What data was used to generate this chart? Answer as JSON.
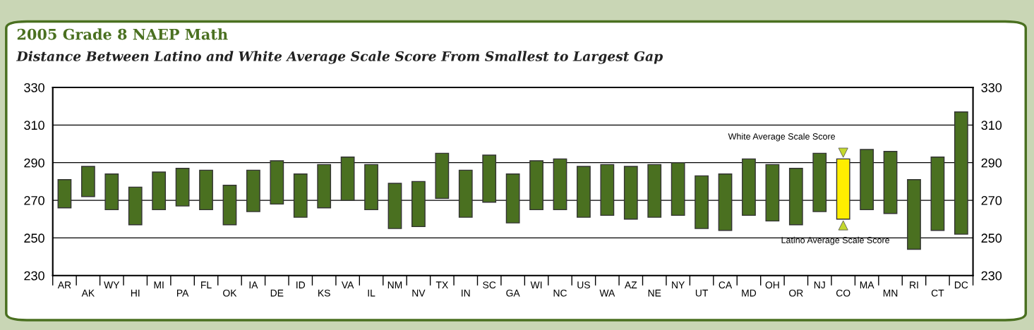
{
  "chart_data": {
    "type": "bar",
    "title": "2005 Grade 8 NAEP Math",
    "subtitle": "Distance Between Latino and White Average Scale Score From Smallest to Largest Gap",
    "categories": [
      "AR",
      "AK",
      "WY",
      "HI",
      "MI",
      "PA",
      "FL",
      "OK",
      "IA",
      "DE",
      "ID",
      "KS",
      "VA",
      "IL",
      "NM",
      "NV",
      "TX",
      "IN",
      "SC",
      "GA",
      "WI",
      "NC",
      "US",
      "WA",
      "AZ",
      "NE",
      "NY",
      "UT",
      "CA",
      "MD",
      "OH",
      "OR",
      "NJ",
      "CO",
      "MA",
      "MN",
      "RI",
      "CT",
      "DC"
    ],
    "base": [
      266,
      272,
      265,
      257,
      265,
      267,
      265,
      257,
      264,
      268,
      261,
      266,
      270,
      265,
      255,
      256,
      271,
      261,
      269,
      258,
      265,
      265,
      261,
      262,
      260,
      261,
      262,
      255,
      254,
      262,
      259,
      257,
      264,
      260,
      265,
      263,
      244,
      254,
      252
    ],
    "values": [
      15,
      16,
      19,
      20,
      20,
      20,
      21,
      21,
      22,
      23,
      23,
      23,
      23,
      24,
      24,
      24,
      24,
      25,
      25,
      26,
      26,
      27,
      27,
      27,
      28,
      28,
      28,
      28,
      30,
      30,
      30,
      30,
      31,
      32,
      32,
      33,
      37,
      39,
      65
    ],
    "colors": [
      "#4a7020",
      "#4a7020",
      "#4a7020",
      "#4a7020",
      "#4a7020",
      "#4a7020",
      "#4a7020",
      "#4a7020",
      "#4a7020",
      "#4a7020",
      "#4a7020",
      "#4a7020",
      "#4a7020",
      "#4a7020",
      "#4a7020",
      "#4a7020",
      "#4a7020",
      "#4a7020",
      "#4a7020",
      "#4a7020",
      "#4a7020",
      "#4a7020",
      "#4a7020",
      "#4a7020",
      "#4a7020",
      "#4a7020",
      "#4a7020",
      "#4a7020",
      "#4a7020",
      "#4a7020",
      "#4a7020",
      "#4a7020",
      "#4a7020",
      "#ffee00",
      "#4a7020",
      "#4a7020",
      "#4a7020",
      "#4a7020",
      "#4a7020"
    ],
    "ylim": [
      230,
      330
    ],
    "yticks": [
      230,
      250,
      270,
      290,
      310,
      330
    ],
    "y2lim": [
      230,
      330
    ],
    "y2ticks": [
      230,
      250,
      270,
      290,
      310,
      330
    ],
    "grid": "y",
    "annotations": [
      {
        "text": "White Average Scale Score",
        "x": "CO",
        "y": 292
      },
      {
        "text": "Latino Average Scale Score",
        "x": "CO",
        "y": 260
      }
    ]
  }
}
